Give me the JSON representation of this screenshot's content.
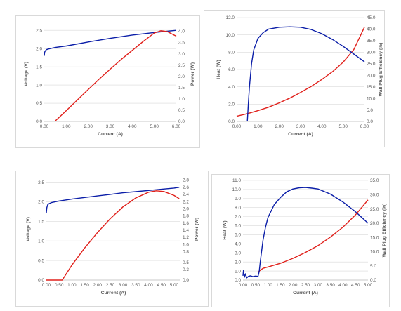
{
  "colors": {
    "blue": "#0b1ea8",
    "red": "#e0201b",
    "grid": "#d9d9d9",
    "text": "#595959"
  },
  "chart_data": [
    {
      "type": "line",
      "xlabel": "Current (A)",
      "ylabel": "Voltage (V)",
      "y2label": "Power (W)",
      "xlim": [
        0,
        6
      ],
      "ylim": [
        0,
        2.6
      ],
      "y2lim": [
        0,
        4.2
      ],
      "xticks": [
        "0.00",
        "1.00",
        "2.00",
        "3.00",
        "4.00",
        "5.00",
        "6.00"
      ],
      "yticks": [
        "0.0",
        "0.5",
        "1.0",
        "1.5",
        "2.0",
        "2.5"
      ],
      "y2ticks": [
        "0.0",
        "0.5",
        "1.0",
        "1.5",
        "2.0",
        "2.5",
        "3.0",
        "3.5",
        "4.0"
      ],
      "grid": true,
      "series": [
        {
          "axis": "left",
          "color": "#0b1ea8",
          "x": [
            0,
            0.02,
            0.05,
            0.1,
            0.2,
            0.5,
            1,
            2,
            3,
            4,
            5,
            6
          ],
          "y": [
            1.8,
            1.9,
            1.94,
            1.97,
            1.99,
            2.03,
            2.07,
            2.18,
            2.28,
            2.37,
            2.44,
            2.5
          ]
        },
        {
          "axis": "right",
          "color": "#e0201b",
          "x": [
            0.48,
            1,
            1.5,
            2,
            2.5,
            3,
            3.5,
            4,
            4.5,
            5,
            5.3,
            5.6,
            6
          ],
          "y": [
            0,
            0.48,
            0.95,
            1.42,
            1.88,
            2.32,
            2.75,
            3.15,
            3.55,
            3.92,
            4.02,
            3.98,
            3.78
          ]
        }
      ]
    },
    {
      "type": "line",
      "xlabel": "Current (A)",
      "ylabel": "Heat (W)",
      "y2label": "Wall Plug Efficiency (%)",
      "xlim": [
        0,
        6
      ],
      "ylim": [
        0,
        12
      ],
      "y2lim": [
        0,
        45
      ],
      "xticks": [
        "0.00",
        "1.00",
        "2.00",
        "3.00",
        "4.00",
        "5.00",
        "6.00"
      ],
      "yticks": [
        "0.0",
        "2.0",
        "4.0",
        "6.0",
        "8.0",
        "10.0",
        "12.0"
      ],
      "y2ticks": [
        "0.0",
        "5.0",
        "10.0",
        "15.0",
        "20.0",
        "25.0",
        "30.0",
        "35.0",
        "40.0",
        "45.0"
      ],
      "grid": true,
      "series": [
        {
          "axis": "left",
          "color": "#e0201b",
          "x": [
            0,
            0.5,
            1,
            1.5,
            2,
            2.5,
            3,
            3.5,
            4,
            4.5,
            5,
            5.5,
            6
          ],
          "y": [
            0.6,
            0.9,
            1.25,
            1.65,
            2.15,
            2.7,
            3.35,
            4.05,
            4.85,
            5.75,
            6.85,
            8.3,
            10.9
          ]
        },
        {
          "axis": "right",
          "color": "#0b1ea8",
          "x": [
            0.5,
            0.55,
            0.6,
            0.7,
            0.8,
            1,
            1.25,
            1.5,
            2,
            2.5,
            3,
            3.5,
            4,
            4.5,
            5,
            5.5,
            6
          ],
          "y": [
            0,
            8,
            15,
            25,
            31,
            36,
            38.5,
            40,
            40.8,
            41,
            40.8,
            39.8,
            38,
            35.5,
            32.5,
            29.2,
            25.8
          ]
        }
      ]
    },
    {
      "type": "line",
      "xlabel": "Current (A)",
      "ylabel": "Voltage (V)",
      "y2label": "Power (W)",
      "xlim": [
        0,
        5.25
      ],
      "ylim": [
        0,
        2.6
      ],
      "y2lim": [
        0,
        2.85
      ],
      "xticks": [
        "0.00",
        "0.50",
        "1.00",
        "1.50",
        "2.00",
        "2.50",
        "3.00",
        "3.50",
        "4.00",
        "4.50",
        "5.00"
      ],
      "yticks": [
        "0.0",
        "0.5",
        "1.0",
        "1.5",
        "2.0",
        "2.5"
      ],
      "y2ticks": [
        "0.0",
        "0.3",
        "0.5",
        "0.8",
        "1.0",
        "1.2",
        "1.4",
        "1.6",
        "1.8",
        "2.0",
        "2.2",
        "2.4",
        "2.6",
        "2.8"
      ],
      "grid": true,
      "series": [
        {
          "axis": "left",
          "color": "#0b1ea8",
          "x": [
            0,
            0.02,
            0.05,
            0.1,
            0.2,
            0.5,
            1,
            1.5,
            2,
            2.5,
            3,
            3.5,
            4,
            4.5,
            5,
            5.2
          ],
          "y": [
            1.72,
            1.85,
            1.92,
            1.95,
            1.98,
            2.02,
            2.07,
            2.11,
            2.15,
            2.19,
            2.23,
            2.26,
            2.29,
            2.32,
            2.35,
            2.37
          ]
        },
        {
          "axis": "right",
          "color": "#e0201b",
          "x": [
            0,
            0.62,
            1,
            1.5,
            2,
            2.5,
            3,
            3.5,
            4,
            4.3,
            4.6,
            5,
            5.2
          ],
          "y": [
            0,
            0,
            0.42,
            0.9,
            1.33,
            1.72,
            2.05,
            2.3,
            2.46,
            2.5,
            2.48,
            2.37,
            2.28
          ]
        }
      ]
    },
    {
      "type": "line",
      "xlabel": "Current (A)",
      "ylabel": "Heat (W)",
      "y2label": "Wall Plug Efficiency (%)",
      "xlim": [
        0,
        5
      ],
      "ylim": [
        0,
        11
      ],
      "y2lim": [
        0,
        35
      ],
      "xticks": [
        "0.00",
        "0.50",
        "1.00",
        "1.50",
        "2.00",
        "2.50",
        "3.00",
        "3.50",
        "4.00",
        "4.50",
        "5.00"
      ],
      "yticks": [
        "0.0",
        "1.0",
        "2.0",
        "3.0",
        "4.0",
        "5.0",
        "6.0",
        "7.0",
        "8.0",
        "9.0",
        "10.0",
        "11.0"
      ],
      "y2ticks": [
        "0.0",
        "5.0",
        "10.0",
        "15.0",
        "20.0",
        "25.0",
        "30.0",
        "35.0"
      ],
      "grid": true,
      "series": [
        {
          "axis": "left",
          "color": "#e0201b",
          "x": [
            0.6,
            0.8,
            1,
            1.5,
            2,
            2.5,
            3,
            3.5,
            4,
            4.5,
            5
          ],
          "y": [
            0.9,
            1.3,
            1.45,
            1.85,
            2.4,
            3.05,
            3.8,
            4.75,
            5.85,
            7.2,
            8.85
          ]
        },
        {
          "axis": "right",
          "color": "#0b1ea8",
          "x": [
            0,
            0.02,
            0.06,
            0.1,
            0.15,
            0.22,
            0.3,
            0.4,
            0.5,
            0.6,
            0.65,
            0.7,
            0.8,
            0.9,
            1,
            1.25,
            1.5,
            1.75,
            2,
            2.25,
            2.5,
            2.75,
            3,
            3.5,
            4,
            4.5,
            5
          ],
          "y": [
            1.5,
            3.5,
            1,
            2.2,
            0.8,
            1.3,
            1.5,
            1.2,
            1.4,
            1.3,
            3,
            7,
            14,
            18.5,
            22,
            26.5,
            29,
            31,
            32,
            32.4,
            32.5,
            32.3,
            32,
            30.2,
            27.4,
            24,
            20
          ]
        }
      ]
    }
  ]
}
